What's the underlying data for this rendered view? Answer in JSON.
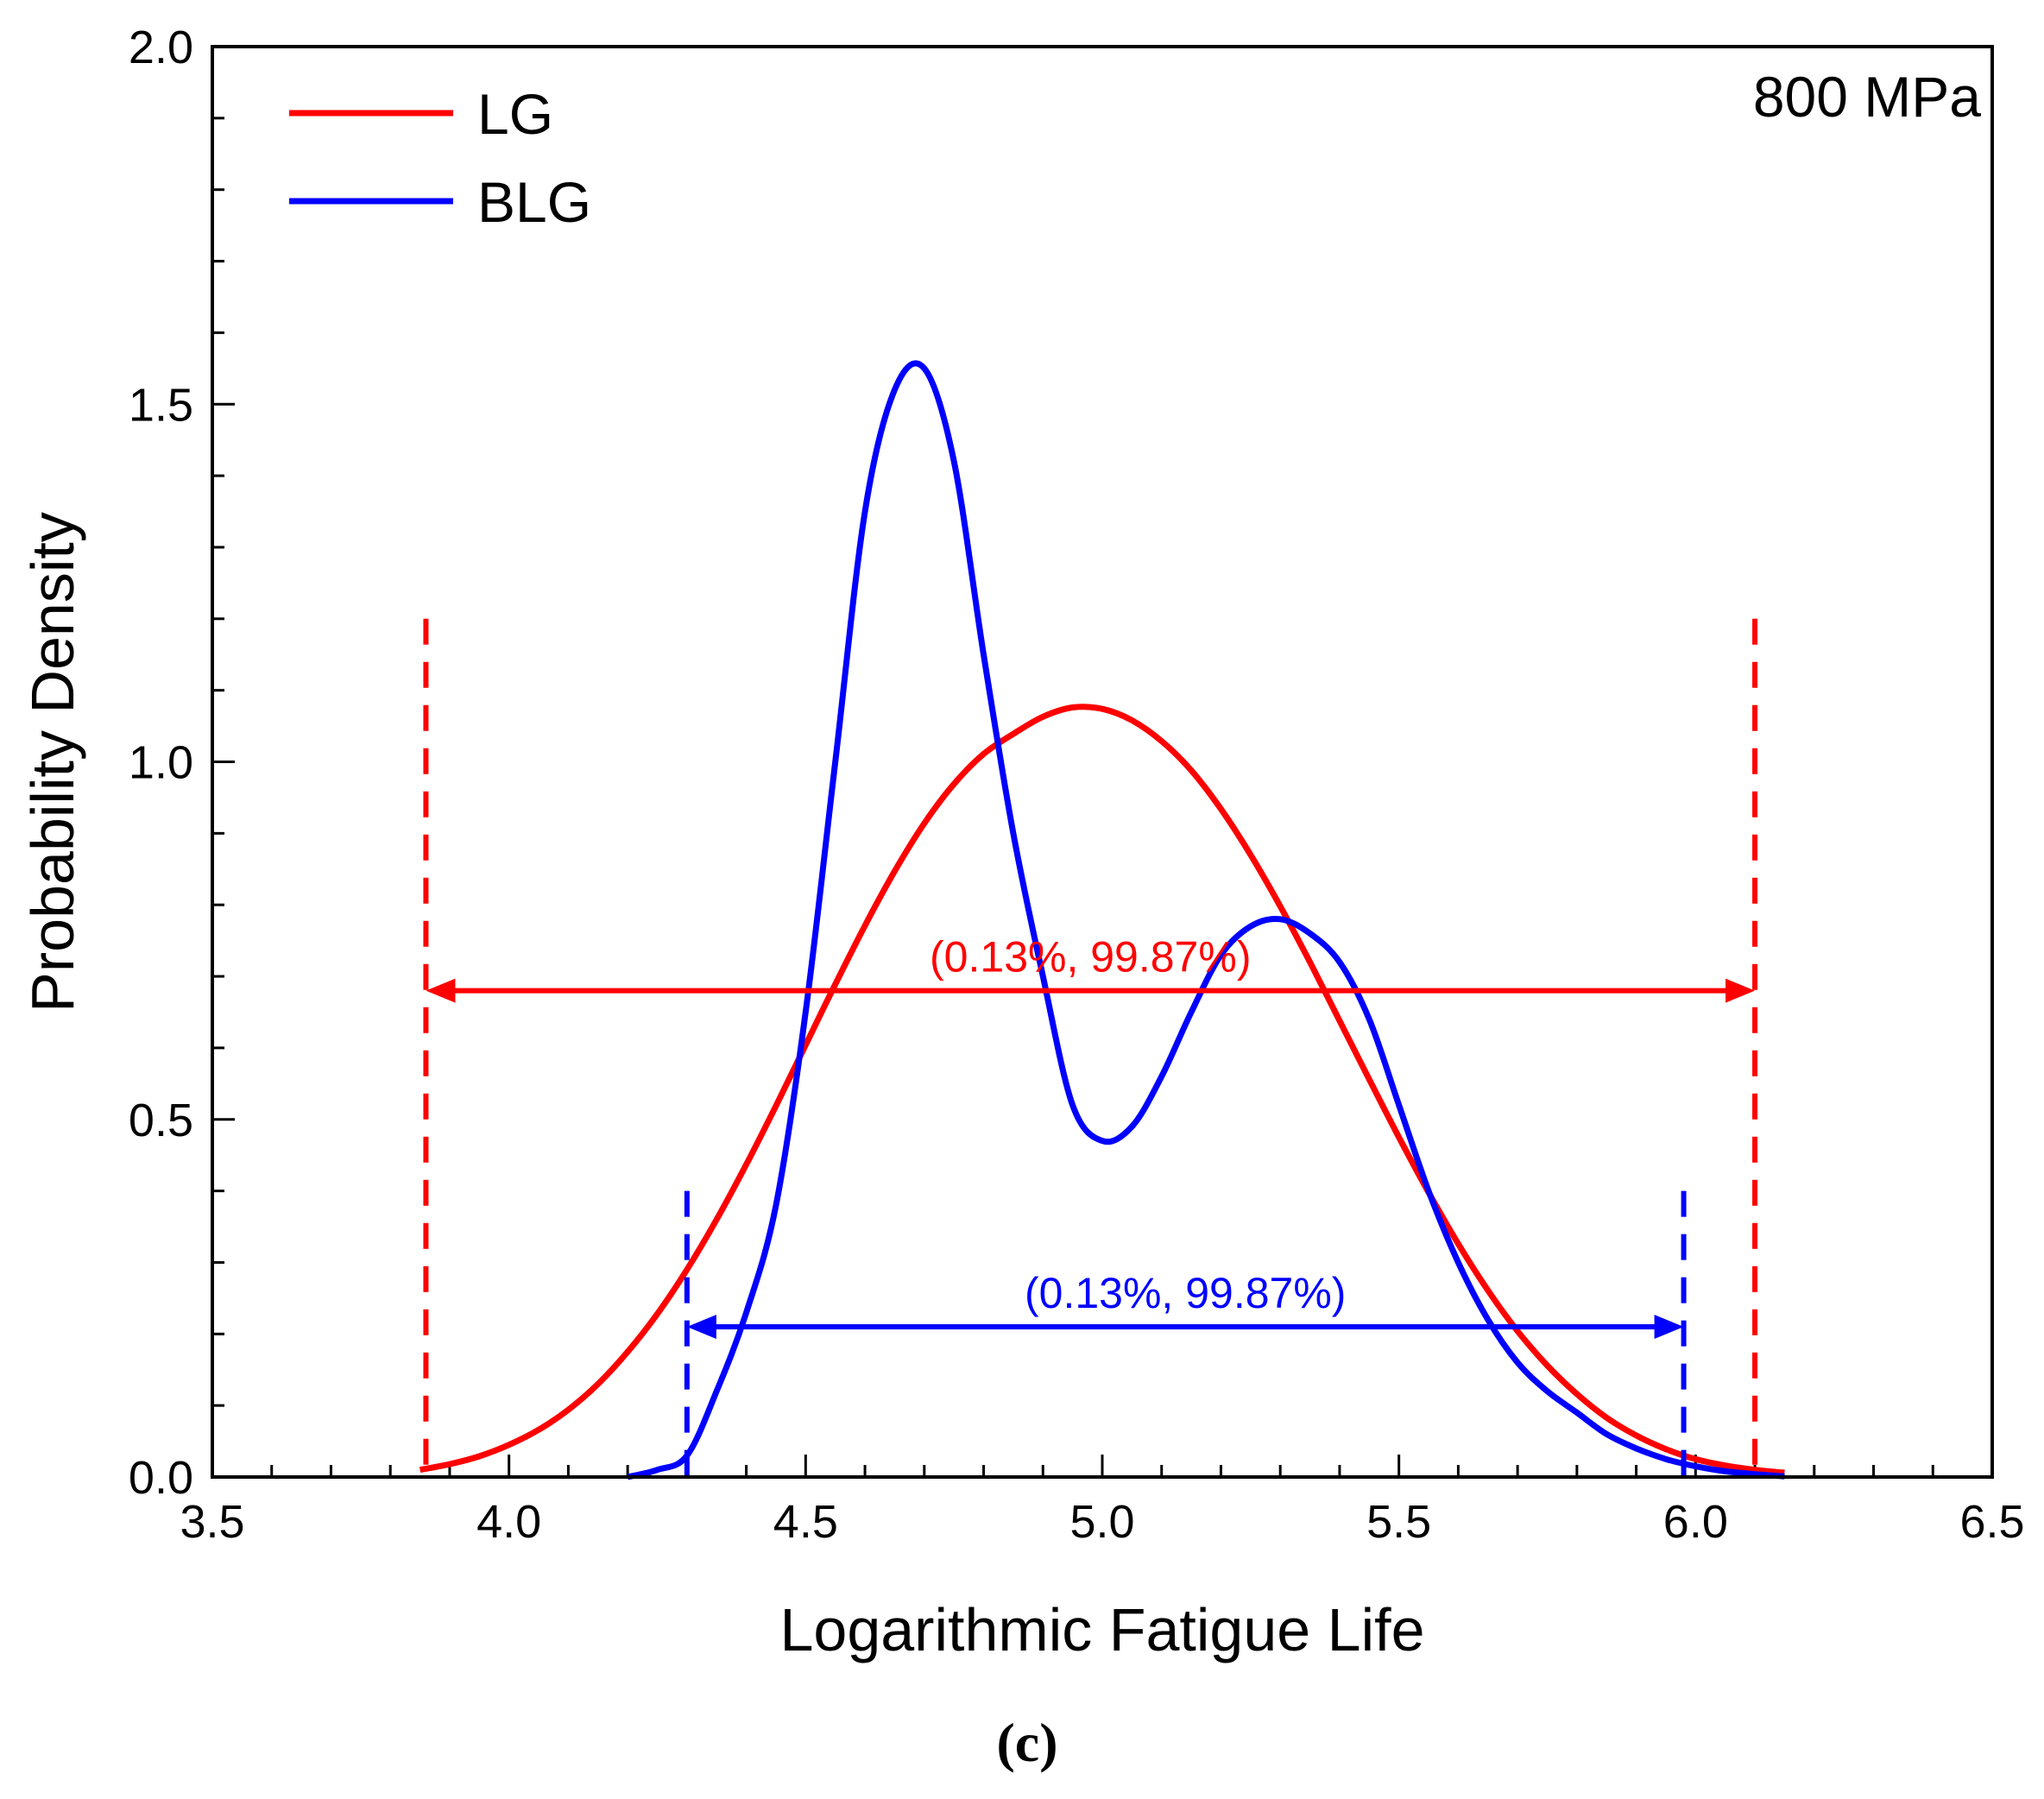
{
  "chart_data": {
    "type": "line",
    "title": "",
    "annotation": "800 MPa",
    "caption": "(c)",
    "xlabel": "Logarithmic Fatigue Life",
    "ylabel": "Probability Density",
    "xlim": [
      3.5,
      6.5
    ],
    "ylim": [
      0.0,
      2.0
    ],
    "xticks": [
      "3.5",
      "4.0",
      "4.5",
      "5.0",
      "5.5",
      "6.0",
      "6.5"
    ],
    "yticks": [
      "0.0",
      "0.5",
      "1.0",
      "1.5",
      "2.0"
    ],
    "legend_position": "top-left",
    "colors": {
      "LG": "#ff0000",
      "BLG": "#0000ff",
      "axis": "#000000"
    },
    "series": [
      {
        "name": "LG",
        "x": [
          3.85,
          3.9,
          3.95,
          4.0,
          4.05,
          4.1,
          4.15,
          4.2,
          4.25,
          4.3,
          4.35,
          4.4,
          4.45,
          4.5,
          4.55,
          4.6,
          4.65,
          4.7,
          4.75,
          4.8,
          4.85,
          4.9,
          4.95,
          5.0,
          5.05,
          5.1,
          5.15,
          5.2,
          5.25,
          5.3,
          5.35,
          5.4,
          5.45,
          5.5,
          5.55,
          5.6,
          5.65,
          5.7,
          5.75,
          5.8,
          5.85,
          5.9,
          5.95,
          6.0,
          6.05,
          6.1,
          6.15
        ],
        "values": [
          0.01,
          0.018,
          0.029,
          0.045,
          0.066,
          0.094,
          0.13,
          0.175,
          0.228,
          0.29,
          0.36,
          0.437,
          0.519,
          0.604,
          0.689,
          0.771,
          0.847,
          0.914,
          0.969,
          1.011,
          1.039,
          1.063,
          1.076,
          1.074,
          1.058,
          1.029,
          0.988,
          0.934,
          0.87,
          0.798,
          0.72,
          0.638,
          0.556,
          0.475,
          0.398,
          0.326,
          0.261,
          0.204,
          0.156,
          0.116,
          0.083,
          0.058,
          0.039,
          0.025,
          0.016,
          0.01,
          0.006
        ]
      },
      {
        "name": "BLG",
        "x": [
          4.2,
          4.25,
          4.3,
          4.35,
          4.4,
          4.45,
          4.5,
          4.55,
          4.6,
          4.65,
          4.7,
          4.75,
          4.8,
          4.85,
          4.9,
          4.95,
          5.0,
          5.05,
          5.1,
          5.15,
          5.2,
          5.25,
          5.3,
          5.35,
          5.4,
          5.45,
          5.5,
          5.55,
          5.6,
          5.65,
          5.7,
          5.75,
          5.8,
          5.85,
          5.9,
          5.95,
          6.0,
          6.05,
          6.1,
          6.15
        ],
        "values": [
          0.0,
          0.01,
          0.03,
          0.12,
          0.23,
          0.38,
          0.65,
          1.0,
          1.35,
          1.52,
          1.55,
          1.42,
          1.15,
          0.9,
          0.7,
          0.52,
          0.47,
          0.49,
          0.56,
          0.65,
          0.73,
          0.77,
          0.78,
          0.76,
          0.72,
          0.64,
          0.52,
          0.4,
          0.3,
          0.22,
          0.16,
          0.12,
          0.09,
          0.06,
          0.04,
          0.025,
          0.015,
          0.008,
          0.004,
          0.001
        ]
      }
    ],
    "intervals": [
      {
        "series": "LG",
        "label": "(0.13%,  99.87%)",
        "low": 3.86,
        "high": 6.1,
        "y": 0.68,
        "marker_top": 1.2
      },
      {
        "series": "BLG",
        "label": "(0.13%,  99.87%)",
        "low": 4.3,
        "high": 5.98,
        "y": 0.21,
        "marker_top": 0.4
      }
    ]
  }
}
